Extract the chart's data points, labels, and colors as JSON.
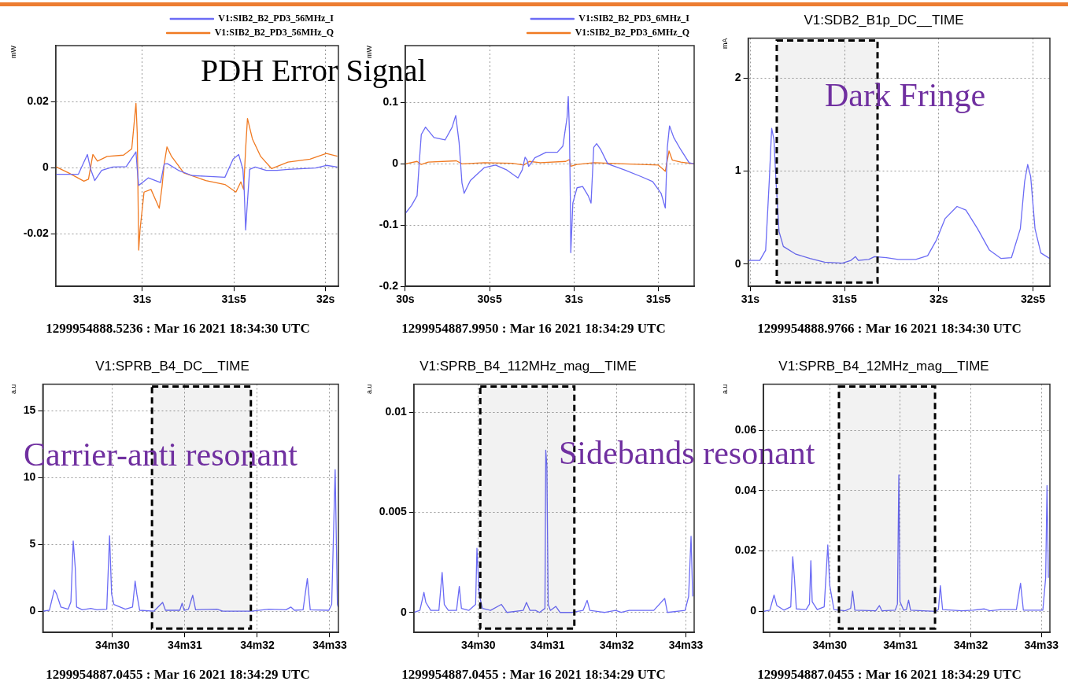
{
  "chart_data": [
    {
      "type": "line",
      "ylabel": "mW",
      "legend": "top",
      "grid": true,
      "xlim": [
        30.528,
        32.07
      ],
      "ylim": [
        -0.036,
        0.037
      ],
      "xticks": [
        {
          "value": 31,
          "label": "31s"
        },
        {
          "value": 31.5,
          "label": "31s5"
        },
        {
          "value": 32,
          "label": "32s"
        }
      ],
      "yticks": [
        -0.02,
        0,
        0.02
      ],
      "series": [
        {
          "name": "V1:SIB2_B2_PD3_56MHz_I",
          "color": "#6b6bf5",
          "x": [
            30.528,
            30.652,
            30.701,
            30.719,
            30.741,
            30.779,
            30.839,
            30.913,
            30.966,
            30.973,
            30.981,
            31.033,
            31.1,
            31.12,
            31.138,
            31.197,
            31.272,
            31.347,
            31.451,
            31.496,
            31.526,
            31.549,
            31.556,
            31.564,
            31.571,
            31.586,
            31.616,
            31.676,
            31.735,
            31.795,
            31.945,
            32.004,
            32.064
          ],
          "values": [
            -0.002,
            -0.002,
            0.004,
            -0.0005,
            -0.0039,
            -0.0008,
            0.0002,
            0.0003,
            0.0048,
            -0.0005,
            -0.0054,
            -0.0031,
            -0.0045,
            0.0011,
            0.0012,
            -0.0008,
            -0.0024,
            -0.0026,
            -0.0029,
            0.0026,
            0.004,
            -0.0005,
            -0.0066,
            -0.0189,
            -0.0127,
            -0.0005,
            0.0002,
            -0.0008,
            -0.0008,
            -0.0005,
            -0.0001,
            0.0007,
            0.0002
          ]
        },
        {
          "name": "V1:SIB2_B2_PD3_56MHz_Q",
          "color": "#f07a22",
          "x": [
            30.528,
            30.599,
            30.682,
            30.707,
            30.731,
            30.756,
            30.809,
            30.898,
            30.943,
            30.966,
            30.973,
            30.981,
            30.988,
            31.01,
            31.048,
            31.093,
            31.108,
            31.12,
            31.135,
            31.16,
            31.227,
            31.347,
            31.451,
            31.511,
            31.538,
            31.553,
            31.564,
            31.574,
            31.601,
            31.646,
            31.706,
            31.795,
            31.915,
            32.004,
            32.064
          ],
          "values": [
            0.0003,
            -0.0016,
            -0.0041,
            -0.0035,
            0.004,
            0.002,
            0.0034,
            0.0038,
            0.0057,
            0.0195,
            0.0103,
            -0.025,
            -0.0189,
            -0.0074,
            -0.0066,
            -0.0123,
            -0.0058,
            0.0011,
            0.0063,
            0.0034,
            -0.0016,
            -0.0039,
            -0.0051,
            -0.0074,
            -0.0043,
            -0.0066,
            0.0057,
            0.0149,
            0.0087,
            0.0034,
            -0.0003,
            0.0017,
            0.0026,
            0.0043,
            0.0035
          ]
        }
      ],
      "annotations": [
        "1299954888.5236 : Mar 16 2021 18:34:30 UTC",
        "PDH Error Signal"
      ]
    },
    {
      "type": "line",
      "ylabel": "mW",
      "legend": "top",
      "grid": true,
      "xlim": [
        30,
        31.712
      ],
      "ylim": [
        -0.2,
        0.193
      ],
      "xticks": [
        {
          "value": 30,
          "label": "30s"
        },
        {
          "value": 30.5,
          "label": "30s5"
        },
        {
          "value": 31,
          "label": "31s"
        },
        {
          "value": 31.5,
          "label": "31s5"
        }
      ],
      "yticks": [
        -0.2,
        -0.1,
        0,
        0.1
      ],
      "series": [
        {
          "name": "V1:SIB2_B2_PD3_6MHz_I",
          "color": "#6b6bf5",
          "x": [
            30,
            30.037,
            30.07,
            30.083,
            30.095,
            30.12,
            30.17,
            30.236,
            30.278,
            30.299,
            30.319,
            30.336,
            30.349,
            30.386,
            30.469,
            30.535,
            30.602,
            30.668,
            30.693,
            30.71,
            30.722,
            30.731,
            30.743,
            30.768,
            30.835,
            30.901,
            30.934,
            30.959,
            30.966,
            30.973,
            30.978,
            30.981,
            30.993,
            31.018,
            31.051,
            31.084,
            31.101,
            31.117,
            31.134,
            31.159,
            31.2,
            31.3,
            31.4,
            31.466,
            31.516,
            31.541,
            31.553,
            31.566,
            31.591,
            31.633,
            31.682,
            31.712
          ],
          "values": [
            -0.081,
            -0.068,
            -0.052,
            0.002,
            0.048,
            0.06,
            0.043,
            0.039,
            0.06,
            0.079,
            0.035,
            -0.031,
            -0.048,
            -0.027,
            -0.006,
            -0.002,
            -0.01,
            -0.023,
            -0.01,
            0.011,
            0.006,
            -0.004,
            0,
            0.01,
            0.019,
            0.019,
            0.029,
            0.076,
            0.11,
            0.052,
            -0.052,
            -0.145,
            -0.064,
            -0.039,
            -0.037,
            -0.052,
            -0.064,
            0.027,
            0.033,
            0.023,
            0,
            -0.01,
            -0.021,
            -0.029,
            -0.048,
            -0.072,
            0.027,
            0.062,
            0.043,
            0.023,
            0.002,
            0
          ]
        },
        {
          "name": "V1:SIB2_B2_PD3_6MHz_Q",
          "color": "#f07a22",
          "x": [
            30,
            30.07,
            30.095,
            30.136,
            30.303,
            30.336,
            30.469,
            30.635,
            30.702,
            30.735,
            30.801,
            30.951,
            30.973,
            30.981,
            31.018,
            31.117,
            31.3,
            31.5,
            31.541,
            31.563,
            31.583,
            31.633,
            31.712
          ],
          "values": [
            0,
            0.004,
            -0.001,
            0.003,
            0.005,
            0,
            0.002,
            0.001,
            -0.002,
            0.004,
            0.002,
            0.004,
            0.007,
            -0.004,
            -0.001,
            0.002,
            0,
            -0.002,
            -0.012,
            0.021,
            0.006,
            0.003,
            0
          ]
        }
      ],
      "annotations": [
        "1299954887.9950 : Mar 16 2021 18:34:29 UTC"
      ]
    },
    {
      "type": "line",
      "title": "V1:SDB2_B1p_DC__TIME",
      "ylabel": "mA",
      "grid": true,
      "xlim": [
        30.988,
        32.59
      ],
      "ylim": [
        -0.24,
        2.43
      ],
      "xticks": [
        {
          "value": 31,
          "label": "31s"
        },
        {
          "value": 31.5,
          "label": "31s5"
        },
        {
          "value": 32,
          "label": "32s"
        },
        {
          "value": 32.5,
          "label": "32s5"
        }
      ],
      "yticks": [
        0,
        1,
        2
      ],
      "x": [
        30.988,
        31.05,
        31.081,
        31.1,
        31.113,
        31.125,
        31.136,
        31.152,
        31.175,
        31.238,
        31.316,
        31.394,
        31.488,
        31.534,
        31.558,
        31.573,
        31.628,
        31.659,
        31.722,
        31.784,
        31.878,
        31.941,
        31.988,
        32.034,
        32.097,
        32.144,
        32.206,
        32.269,
        32.331,
        32.386,
        32.433,
        32.456,
        32.472,
        32.488,
        32.511,
        32.542,
        32.589
      ],
      "series": [
        {
          "color": "#6b6bf5",
          "values": [
            0.04,
            0.04,
            0.15,
            0.89,
            1.46,
            1.34,
            0.89,
            0.35,
            0.19,
            0.11,
            0.06,
            0.02,
            0.01,
            0.04,
            0.08,
            0.04,
            0.05,
            0.08,
            0.07,
            0.05,
            0.05,
            0.09,
            0.26,
            0.49,
            0.62,
            0.58,
            0.38,
            0.15,
            0.06,
            0.07,
            0.38,
            0.89,
            1.07,
            0.94,
            0.38,
            0.12,
            0.06
          ]
        }
      ],
      "bands": [
        {
          "axis": "x",
          "from": 31.14,
          "to": 31.675,
          "color": "#000000"
        }
      ],
      "annotations": [
        "1299954888.9766 : Mar 16 2021 18:34:30 UTC",
        "Dark Fringe"
      ]
    },
    {
      "type": "line",
      "title": "V1:SPRB_B4_DC__TIME",
      "ylabel": "a.u",
      "grid": true,
      "xlim": [
        "2021-03-16T18:34:29.038",
        "2021-03-16T18:34:33.120"
      ],
      "ylim": [
        -1.6,
        17
      ],
      "xticks": [
        {
          "value": "2021-03-16T18:34:30",
          "label": "34m30"
        },
        {
          "value": "2021-03-16T18:34:31",
          "label": "34m31"
        },
        {
          "value": "2021-03-16T18:34:32",
          "label": "34m32"
        },
        {
          "value": "2021-03-16T18:34:33",
          "label": "34m33"
        }
      ],
      "yticks": [
        0,
        5,
        10,
        15
      ],
      "x": [
        "2021-03-16T18:34:29.038",
        "2021-03-16T18:34:29.129",
        "2021-03-16T18:34:29.197",
        "2021-03-16T18:34:29.228",
        "2021-03-16T18:34:29.288",
        "2021-03-16T18:34:29.387",
        "2021-03-16T18:34:29.426",
        "2021-03-16T18:34:29.458",
        "2021-03-16T18:34:29.486",
        "2021-03-16T18:34:29.505",
        "2021-03-16T18:34:29.584",
        "2021-03-16T18:34:29.703",
        "2021-03-16T18:34:29.782",
        "2021-03-16T18:34:29.921",
        "2021-03-16T18:34:29.960",
        "2021-03-16T18:34:29.988",
        "2021-03-16T18:34:30.020",
        "2021-03-16T18:34:30.178",
        "2021-03-16T18:34:30.277",
        "2021-03-16T18:34:30.313",
        "2021-03-16T18:34:30.336",
        "2021-03-16T18:34:30.376",
        "2021-03-16T18:34:30.574",
        "2021-03-16T18:34:30.693",
        "2021-03-16T18:34:30.732",
        "2021-03-16T18:34:30.930",
        "2021-03-16T18:34:30.962",
        "2021-03-16T18:34:30.990",
        "2021-03-16T18:34:31.049",
        "2021-03-16T18:34:31.108",
        "2021-03-16T18:34:31.148",
        "2021-03-16T18:34:31.444",
        "2021-03-16T18:34:31.524",
        "2021-03-16T18:34:31.919",
        "2021-03-16T18:34:32.157",
        "2021-03-16T18:34:32.394",
        "2021-03-16T18:34:32.465",
        "2021-03-16T18:34:32.513",
        "2021-03-16T18:34:32.632",
        "2021-03-16T18:34:32.691",
        "2021-03-16T18:34:32.731",
        "2021-03-16T18:34:32.988",
        "2021-03-16T18:34:33.027",
        "2021-03-16T18:34:33.075",
        "2021-03-16T18:34:33.106",
        "2021-03-16T18:34:33.118"
      ],
      "series": [
        {
          "color": "#6b6bf5",
          "values": [
            0,
            0.06,
            1.59,
            1.29,
            0.3,
            0.14,
            0.69,
            5.25,
            3.27,
            0.3,
            0.1,
            0.2,
            0.1,
            0.14,
            5.65,
            1.29,
            0.5,
            0.14,
            0.3,
            2.24,
            1.29,
            0.06,
            0,
            0.65,
            0.06,
            0.06,
            0.59,
            0.06,
            0.14,
            1.19,
            0.1,
            0.14,
            0,
            0,
            0.14,
            0.1,
            0.3,
            0.06,
            0.1,
            2.44,
            0.1,
            0.06,
            0.5,
            10.6,
            0.5,
            0.3
          ]
        }
      ],
      "bands": [
        {
          "axis": "x",
          "from": "2021-03-16T18:34:30.546",
          "to": "2021-03-16T18:34:31.911",
          "color": "#000000"
        }
      ],
      "annotations": [
        "1299954887.0455 : Mar 16 2021 18:34:29 UTC",
        "Carrier-anti resonant"
      ]
    },
    {
      "type": "line",
      "title": "V1:SPRB_B4_112MHz_mag__TIME",
      "ylabel": "a.u",
      "grid": true,
      "xlim": [
        "2021-03-16T18:34:29.068",
        "2021-03-16T18:34:33.120"
      ],
      "ylim": [
        -0.001,
        0.0114
      ],
      "xticks": [
        {
          "value": "2021-03-16T18:34:30",
          "label": "34m30"
        },
        {
          "value": "2021-03-16T18:34:31",
          "label": "34m31"
        },
        {
          "value": "2021-03-16T18:34:32",
          "label": "34m32"
        },
        {
          "value": "2021-03-16T18:34:33",
          "label": "34m33"
        }
      ],
      "yticks": [
        0,
        0.005,
        0.01
      ],
      "x": [
        "2021-03-16T18:34:29.068",
        "2021-03-16T18:34:29.155",
        "2021-03-16T18:34:29.214",
        "2021-03-16T18:34:29.241",
        "2021-03-16T18:34:29.312",
        "2021-03-16T18:34:29.430",
        "2021-03-16T18:34:29.477",
        "2021-03-16T18:34:29.508",
        "2021-03-16T18:34:29.567",
        "2021-03-16T18:34:29.685",
        "2021-03-16T18:34:29.725",
        "2021-03-16T18:34:29.756",
        "2021-03-16T18:34:29.862",
        "2021-03-16T18:34:29.961",
        "2021-03-16T18:34:29.980",
        "2021-03-16T18:34:30.012",
        "2021-03-16T18:34:30.059",
        "2021-03-16T18:34:30.177",
        "2021-03-16T18:34:30.334",
        "2021-03-16T18:34:30.413",
        "2021-03-16T18:34:30.649",
        "2021-03-16T18:34:30.696",
        "2021-03-16T18:34:30.747",
        "2021-03-16T18:34:30.826",
        "2021-03-16T18:34:30.885",
        "2021-03-16T18:34:30.963",
        "2021-03-16T18:34:30.975",
        "2021-03-16T18:34:30.991",
        "2021-03-16T18:34:31.010",
        "2021-03-16T18:34:31.042",
        "2021-03-16T18:34:31.121",
        "2021-03-16T18:34:31.180",
        "2021-03-16T18:34:31.357",
        "2021-03-16T18:34:31.514",
        "2021-03-16T18:34:31.573",
        "2021-03-16T18:34:31.612",
        "2021-03-16T18:34:31.829",
        "2021-03-16T18:34:31.986",
        "2021-03-16T18:34:32.064",
        "2021-03-16T18:34:32.182",
        "2021-03-16T18:34:32.536",
        "2021-03-16T18:34:32.694",
        "2021-03-16T18:34:32.733",
        "2021-03-16T18:34:32.989",
        "2021-03-16T18:34:33.040",
        "2021-03-16T18:34:33.075",
        "2021-03-16T18:34:33.099"
      ],
      "series": [
        {
          "color": "#6b6bf5",
          "values": [
            0,
            0.0001,
            0.001,
            0.0005,
            0.0001,
            0.0001,
            0.002,
            0.0004,
            0.0001,
            0.0001,
            0.0013,
            0.0002,
            0.0001,
            0.0004,
            0.0032,
            0.0009,
            0.0002,
            0.0001,
            0.0004,
            0,
            0.0001,
            0.0005,
            0.0001,
            0.0001,
            0,
            0.0002,
            0.0081,
            0.0073,
            0.0004,
            0.0001,
            0.0003,
            0,
            0,
            0.0001,
            0.0006,
            0.0001,
            0,
            0.0001,
            0,
            0.0001,
            0.0001,
            0.0007,
            0,
            0.0001,
            0.0008,
            0.0038,
            0.0008
          ]
        }
      ],
      "bands": [
        {
          "axis": "x",
          "from": "2021-03-16T18:34:30.028",
          "to": "2021-03-16T18:34:31.388",
          "color": "#000000"
        }
      ],
      "annotations": [
        "1299954887.0455 : Mar 16 2021 18:34:29 UTC",
        "Sidebands resonant"
      ]
    },
    {
      "type": "line",
      "title": "V1:SPRB_B4_12MHz_mag__TIME",
      "ylabel": "a.u",
      "grid": true,
      "xlim": [
        "2021-03-16T18:34:29.060",
        "2021-03-16T18:34:33.120"
      ],
      "ylim": [
        -0.007,
        0.0753
      ],
      "xticks": [
        {
          "value": "2021-03-16T18:34:30",
          "label": "34m30"
        },
        {
          "value": "2021-03-16T18:34:31",
          "label": "34m31"
        },
        {
          "value": "2021-03-16T18:34:32",
          "label": "34m32"
        },
        {
          "value": "2021-03-16T18:34:33",
          "label": "34m33"
        }
      ],
      "yticks": [
        0,
        0.02,
        0.04,
        0.06
      ],
      "x": [
        "2021-03-16T18:34:29.060",
        "2021-03-16T18:34:29.151",
        "2021-03-16T18:34:29.210",
        "2021-03-16T18:34:29.250",
        "2021-03-16T18:34:29.349",
        "2021-03-16T18:34:29.447",
        "2021-03-16T18:34:29.475",
        "2021-03-16T18:34:29.499",
        "2021-03-16T18:34:29.526",
        "2021-03-16T18:34:29.664",
        "2021-03-16T18:34:29.712",
        "2021-03-16T18:34:29.732",
        "2021-03-16T18:34:29.751",
        "2021-03-16T18:34:29.822",
        "2021-03-16T18:34:29.921",
        "2021-03-16T18:34:29.972",
        "2021-03-16T18:34:30.000",
        "2021-03-16T18:34:30.059",
        "2021-03-16T18:34:30.217",
        "2021-03-16T18:34:30.296",
        "2021-03-16T18:34:30.324",
        "2021-03-16T18:34:30.355",
        "2021-03-16T18:34:30.651",
        "2021-03-16T18:34:30.703",
        "2021-03-16T18:34:30.738",
        "2021-03-16T18:34:30.928",
        "2021-03-16T18:34:30.959",
        "2021-03-16T18:34:30.979",
        "2021-03-16T18:34:30.995",
        "2021-03-16T18:34:31.046",
        "2021-03-16T18:34:31.086",
        "2021-03-16T18:34:31.117",
        "2021-03-16T18:34:31.145",
        "2021-03-16T18:34:31.500",
        "2021-03-16T18:34:31.540",
        "2021-03-16T18:34:31.567",
        "2021-03-16T18:34:31.599",
        "2021-03-16T18:34:31.875",
        "2021-03-16T18:34:32.033",
        "2021-03-16T18:34:32.191",
        "2021-03-16T18:34:32.270",
        "2021-03-16T18:34:32.428",
        "2021-03-16T18:34:32.507",
        "2021-03-16T18:34:32.645",
        "2021-03-16T18:34:32.704",
        "2021-03-16T18:34:32.744",
        "2021-03-16T18:34:33.020",
        "2021-03-16T18:34:33.060",
        "2021-03-16T18:34:33.079",
        "2021-03-16T18:34:33.099"
      ],
      "series": [
        {
          "color": "#6b6bf5",
          "values": [
            0,
            0.0004,
            0.0054,
            0.0019,
            0.0004,
            0.0015,
            0.0181,
            0.0111,
            0.0008,
            0.0006,
            0.0024,
            0.0168,
            0.0032,
            0.0006,
            0.0015,
            0.022,
            0.0085,
            0.0006,
            0.0002,
            0.001,
            0.0067,
            0.0004,
            0.0002,
            0.0019,
            0.0002,
            0.0004,
            0.0024,
            0.0452,
            0.0032,
            0.0004,
            0.0006,
            0.0037,
            0.0004,
            0,
            0.0006,
            0.0085,
            0.0006,
            0.0002,
            0.0004,
            0.0008,
            0.0002,
            0.0006,
            0.0006,
            0.0006,
            0.0093,
            0.0004,
            0.0004,
            0.0111,
            0.0417,
            0.0111
          ]
        }
      ],
      "bands": [
        {
          "axis": "x",
          "from": "2021-03-16T18:34:30.130",
          "to": "2021-03-16T18:34:31.492",
          "color": "#000000"
        }
      ],
      "annotations": [
        "1299954887.0455 : Mar 16 2021 18:34:29 UTC"
      ]
    }
  ]
}
